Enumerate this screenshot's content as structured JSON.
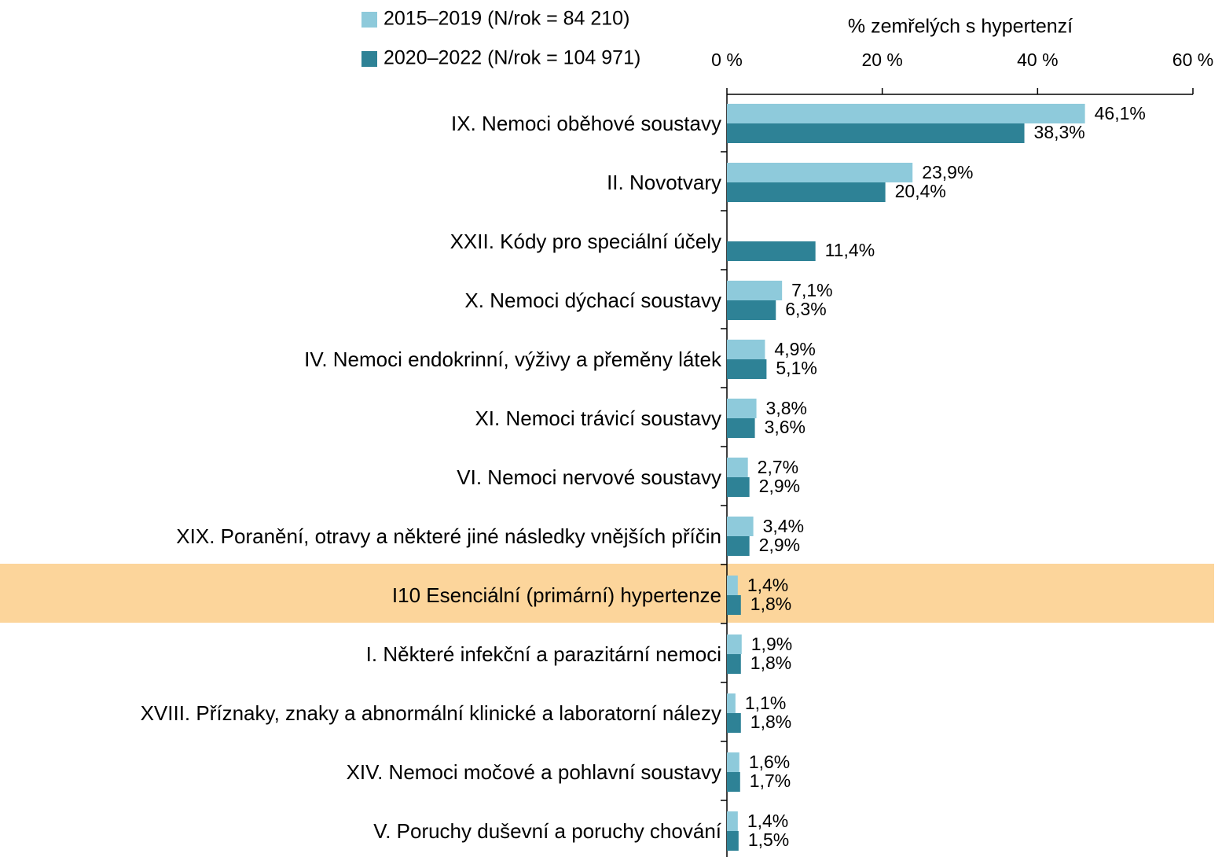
{
  "chart_data": {
    "type": "barh",
    "axis_title": "% zemřelých s hypertenzí",
    "categories": [
      "IX. Nemoci oběhové soustavy",
      "II. Novotvary",
      "XXII. Kódy pro speciální účely",
      "X. Nemoci dýchací soustavy",
      "IV. Nemoci endokrinní, výživy a přeměny látek",
      "XI. Nemoci trávicí soustavy",
      "VI. Nemoci nervové soustavy",
      "XIX. Poranění, otravy a některé jiné následky vnějších příčin",
      "I10 Esenciální (primární) hypertenze",
      "I. Některé infekční a parazitární nemoci",
      "XVIII. Příznaky, znaky a abnormální klinické a laboratorní nálezy",
      "XIV. Nemoci močové a pohlavní soustavy",
      "V. Poruchy duševní a poruchy chování"
    ],
    "series": [
      {
        "name": "2015–2019 (N/rok = 84 210)",
        "color": "#8ecadb",
        "values": [
          46.1,
          23.9,
          null,
          7.1,
          4.9,
          3.8,
          2.7,
          3.4,
          1.4,
          1.9,
          1.1,
          1.6,
          1.4
        ],
        "value_labels": [
          "46,1%",
          "23,9%",
          null,
          "7,1%",
          "4,9%",
          "3,8%",
          "2,7%",
          "3,4%",
          "1,4%",
          "1,9%",
          "1,1%",
          "1,6%",
          "1,4%"
        ]
      },
      {
        "name": "2020–2022 (N/rok = 104 971)",
        "color": "#2e8296",
        "values": [
          38.3,
          20.4,
          11.4,
          6.3,
          5.1,
          3.6,
          2.9,
          2.9,
          1.8,
          1.8,
          1.8,
          1.7,
          1.5
        ],
        "value_labels": [
          "38,3%",
          "20,4%",
          "11,4%",
          "6,3%",
          "5,1%",
          "3,6%",
          "2,9%",
          "2,9%",
          "1,8%",
          "1,8%",
          "1,8%",
          "1,7%",
          "1,5%"
        ]
      }
    ],
    "xlim": [
      0,
      60
    ],
    "xticks": [
      {
        "value": 0,
        "label": "0 %"
      },
      {
        "value": 20,
        "label": "20 %"
      },
      {
        "value": 40,
        "label": "40 %"
      },
      {
        "value": 60,
        "label": "60 %"
      }
    ],
    "highlight_index": 8,
    "highlight_color": "#fcd59b",
    "legend": "top"
  }
}
